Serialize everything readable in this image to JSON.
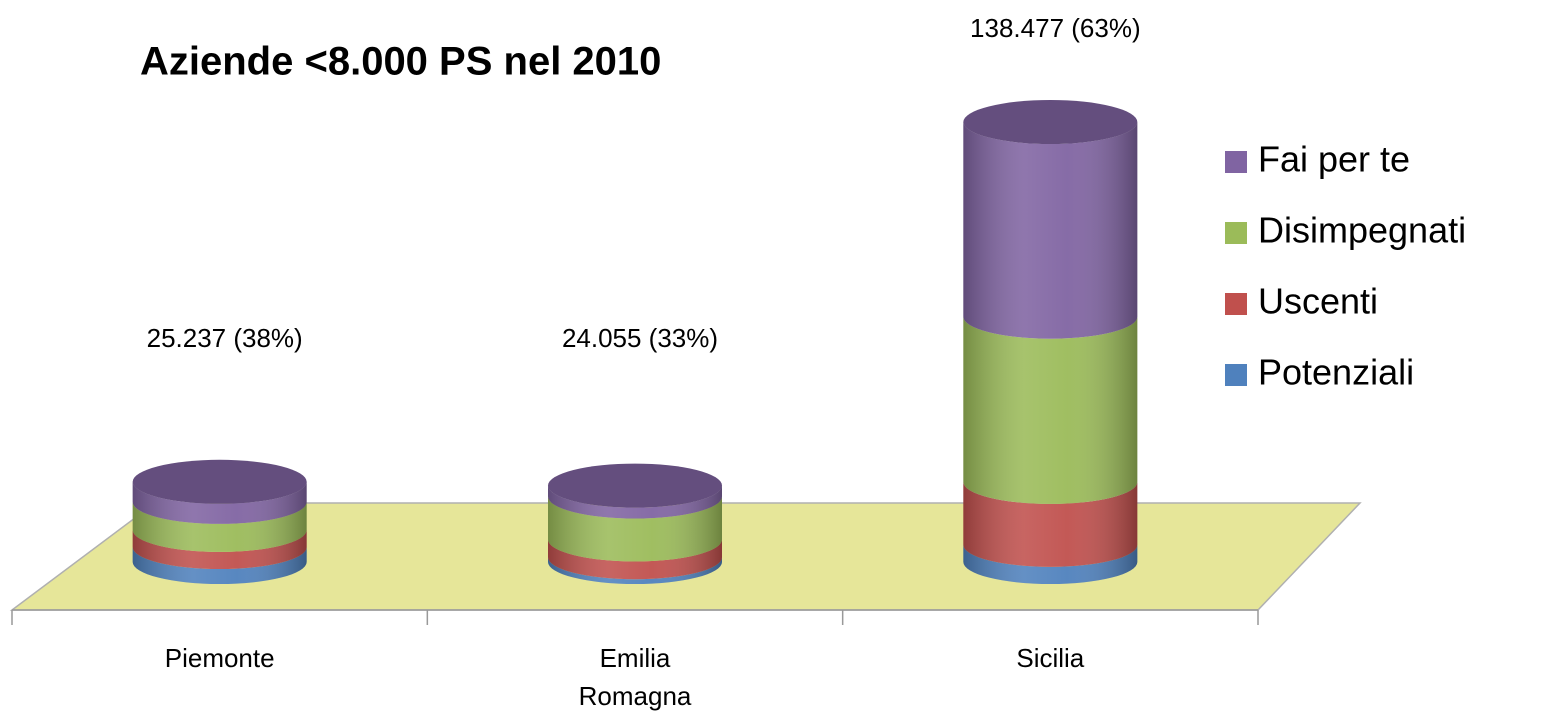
{
  "chart_data": {
    "type": "bar3d_stacked",
    "title": "Aziende <8.000 PS nel 2010",
    "categories": [
      "Piemonte",
      "Emilia\nRomagna",
      "Sicilia"
    ],
    "series": [
      {
        "name": "Potenziali",
        "color": "#4f81bd",
        "values": [
          4700,
          1500,
          5400
        ]
      },
      {
        "name": "Uscenti",
        "color": "#c0504d",
        "values": [
          5400,
          5600,
          19800
        ]
      },
      {
        "name": "Disimpegnati",
        "color": "#9bbb59",
        "values": [
          8800,
          13500,
          52000
        ]
      },
      {
        "name": "Fai per te",
        "color": "#8064a2",
        "values": [
          6337,
          3455,
          61277
        ]
      }
    ],
    "annotations": [
      "25.237 (38%)",
      "24.055 (33%)",
      "138.477 (63%)"
    ],
    "floor_color": "#e6e699"
  }
}
